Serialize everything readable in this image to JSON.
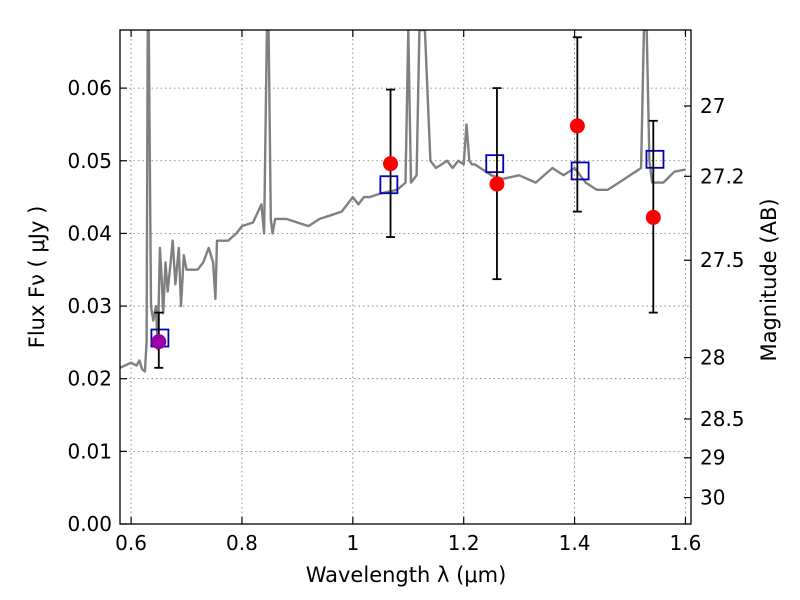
{
  "chart_data": {
    "type": "scatter",
    "title": "",
    "xlabel": "Wavelength  λ (μm)",
    "ylabel": "Flux  Fν  ( μJy )",
    "ylabel_right": "Magnitude (AB)",
    "xlim": [
      0.58,
      1.61
    ],
    "ylim": [
      0.0,
      0.068
    ],
    "grid": true,
    "legend": "none",
    "x_ticks": [
      0.6,
      0.8,
      1.0,
      1.2,
      1.4,
      1.6
    ],
    "x_tick_labels": [
      "0.6",
      "0.8",
      "1",
      "1.2",
      "1.4",
      "1.6"
    ],
    "y_ticks": [
      0.0,
      0.01,
      0.02,
      0.03,
      0.04,
      0.05,
      0.06
    ],
    "y_tick_labels": [
      "0.00",
      "0.01",
      "0.02",
      "0.03",
      "0.04",
      "0.05",
      "0.06"
    ],
    "right_axis_ticks": [
      {
        "mag": 27,
        "label": "27"
      },
      {
        "mag": 27.2,
        "label": "27.2"
      },
      {
        "mag": 27.5,
        "label": "27.5"
      },
      {
        "mag": 28,
        "label": "28"
      },
      {
        "mag": 28.5,
        "label": "28.5"
      },
      {
        "mag": 29,
        "label": "29"
      },
      {
        "mag": 30,
        "label": "30"
      }
    ],
    "colors": {
      "model": "#808080",
      "observed": "#ff0000",
      "synthetic": "#0000bb",
      "first_point": "#9900aa",
      "errorbar": "#000000",
      "grid": "#000000"
    },
    "series": [
      {
        "name": "model spectrum",
        "kind": "line",
        "x": [
          0.58,
          0.6,
          0.61,
          0.615,
          0.62,
          0.625,
          0.628,
          0.63,
          0.632,
          0.636,
          0.64,
          0.645,
          0.648,
          0.652,
          0.655,
          0.658,
          0.662,
          0.666,
          0.67,
          0.675,
          0.68,
          0.686,
          0.69,
          0.695,
          0.7,
          0.71,
          0.72,
          0.73,
          0.74,
          0.748,
          0.752,
          0.755,
          0.76,
          0.775,
          0.79,
          0.8,
          0.82,
          0.835,
          0.84,
          0.845,
          0.848,
          0.852,
          0.855,
          0.86,
          0.88,
          0.9,
          0.92,
          0.94,
          0.96,
          0.98,
          1.0,
          1.01,
          1.02,
          1.03,
          1.05,
          1.08,
          1.095,
          1.1,
          1.105,
          1.115,
          1.12,
          1.13,
          1.14,
          1.15,
          1.17,
          1.18,
          1.19,
          1.2,
          1.205,
          1.21,
          1.215,
          1.22,
          1.25,
          1.27,
          1.3,
          1.33,
          1.36,
          1.38,
          1.4,
          1.42,
          1.44,
          1.46,
          1.48,
          1.5,
          1.52,
          1.525,
          1.53,
          1.535,
          1.54,
          1.56,
          1.58,
          1.6
        ],
        "y": [
          0.0215,
          0.0222,
          0.0218,
          0.0225,
          0.0213,
          0.021,
          0.025,
          0.068,
          0.068,
          0.03,
          0.028,
          0.03,
          0.024,
          0.038,
          0.034,
          0.029,
          0.036,
          0.032,
          0.035,
          0.039,
          0.033,
          0.038,
          0.03,
          0.037,
          0.035,
          0.035,
          0.035,
          0.036,
          0.038,
          0.036,
          0.031,
          0.039,
          0.039,
          0.039,
          0.04,
          0.041,
          0.0415,
          0.044,
          0.04,
          0.068,
          0.068,
          0.042,
          0.04,
          0.042,
          0.042,
          0.0415,
          0.041,
          0.042,
          0.0425,
          0.043,
          0.045,
          0.044,
          0.045,
          0.045,
          0.0455,
          0.046,
          0.047,
          0.068,
          0.047,
          0.048,
          0.068,
          0.068,
          0.05,
          0.049,
          0.05,
          0.049,
          0.05,
          0.0495,
          0.055,
          0.05,
          0.0495,
          0.0495,
          0.048,
          0.0475,
          0.048,
          0.047,
          0.049,
          0.048,
          0.049,
          0.047,
          0.046,
          0.046,
          0.047,
          0.048,
          0.049,
          0.068,
          0.068,
          0.05,
          0.047,
          0.047,
          0.0485,
          0.0488
        ]
      },
      {
        "name": "observed photometry",
        "kind": "points+errorbars",
        "x": [
          0.65,
          1.068,
          1.26,
          1.405,
          1.542
        ],
        "y": [
          0.0251,
          0.0496,
          0.0468,
          0.0548,
          0.0422
        ],
        "y_err_low": [
          0.0036,
          0.0101,
          0.0131,
          0.0118,
          0.0131
        ],
        "y_err_high": [
          0.004,
          0.0102,
          0.0132,
          0.0122,
          0.0133
        ]
      },
      {
        "name": "synthetic photometry",
        "kind": "open-squares",
        "x": [
          0.652,
          1.065,
          1.256,
          1.41,
          1.545
        ],
        "y": [
          0.0256,
          0.0467,
          0.0496,
          0.0486,
          0.0502
        ]
      }
    ]
  }
}
